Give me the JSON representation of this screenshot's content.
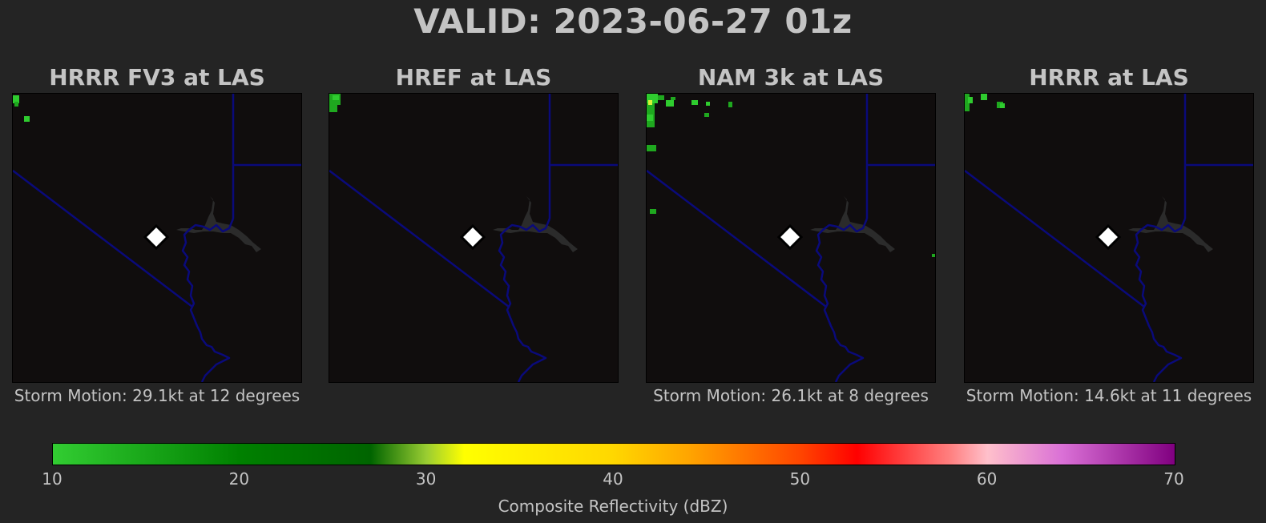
{
  "title": "VALID: 2023-06-27 01z",
  "panels": [
    {
      "title": "HRRR FV3 at LAS",
      "caption": "Storm Motion: 29.1kt at 12 degrees",
      "cells": [
        [
          0,
          2,
          8,
          10,
          "#2fcc2f"
        ],
        [
          2,
          10,
          5,
          6,
          "#1fa81f"
        ],
        [
          14,
          28,
          7,
          7,
          "#2fcc2f"
        ]
      ]
    },
    {
      "title": "HREF at LAS",
      "caption": "",
      "cells": [
        [
          0,
          0,
          14,
          14,
          "#1fa81f"
        ],
        [
          0,
          14,
          10,
          9,
          "#1fa81f"
        ],
        [
          4,
          2,
          8,
          6,
          "#2fcc2f"
        ]
      ]
    },
    {
      "title": "NAM 3k at LAS",
      "caption": "Storm Motion: 26.1kt at 8 degrees",
      "cells": [
        [
          0,
          0,
          14,
          12,
          "#2fcc2f"
        ],
        [
          0,
          12,
          10,
          30,
          "#1fa81f"
        ],
        [
          2,
          8,
          5,
          6,
          "#d9f03a"
        ],
        [
          0,
          26,
          8,
          8,
          "#2fcc2f"
        ],
        [
          14,
          2,
          8,
          6,
          "#1fa81f"
        ],
        [
          24,
          8,
          10,
          8,
          "#2fcc2f"
        ],
        [
          30,
          4,
          6,
          4,
          "#1fa81f"
        ],
        [
          56,
          8,
          8,
          6,
          "#2fcc2f"
        ],
        [
          74,
          10,
          5,
          5,
          "#2fcc2f"
        ],
        [
          72,
          24,
          6,
          5,
          "#1fa81f"
        ],
        [
          102,
          10,
          5,
          7,
          "#1fa81f"
        ],
        [
          0,
          64,
          12,
          8,
          "#1fa81f"
        ],
        [
          4,
          144,
          8,
          6,
          "#1fa81f"
        ],
        [
          356,
          200,
          4,
          4,
          "#1fa81f"
        ]
      ]
    },
    {
      "title": "HRRR at LAS",
      "caption": "Storm Motion: 14.6kt at 11 degrees",
      "cells": [
        [
          0,
          0,
          6,
          22,
          "#1fa81f"
        ],
        [
          4,
          4,
          6,
          8,
          "#2fcc2f"
        ],
        [
          20,
          0,
          8,
          8,
          "#2fcc2f"
        ],
        [
          40,
          10,
          8,
          8,
          "#1fa81f"
        ],
        [
          44,
          12,
          6,
          6,
          "#2fcc2f"
        ]
      ]
    }
  ],
  "colorbar": {
    "label": "Composite Reflectivity (dBZ)",
    "min": 10,
    "max": 70,
    "ticks": [
      "10",
      "20",
      "30",
      "40",
      "50",
      "60",
      "70"
    ],
    "stops": [
      [
        10,
        "#32cd32"
      ],
      [
        20,
        "#008000"
      ],
      [
        27,
        "#006400"
      ],
      [
        30,
        "#9acd32"
      ],
      [
        32,
        "#ffff00"
      ],
      [
        40,
        "#ffd700"
      ],
      [
        44,
        "#ffa500"
      ],
      [
        50,
        "#ff4500"
      ],
      [
        53,
        "#ff0000"
      ],
      [
        58,
        "#ff8080"
      ],
      [
        60,
        "#ffc0cb"
      ],
      [
        64,
        "#da70d6"
      ],
      [
        70,
        "#800080"
      ]
    ]
  }
}
